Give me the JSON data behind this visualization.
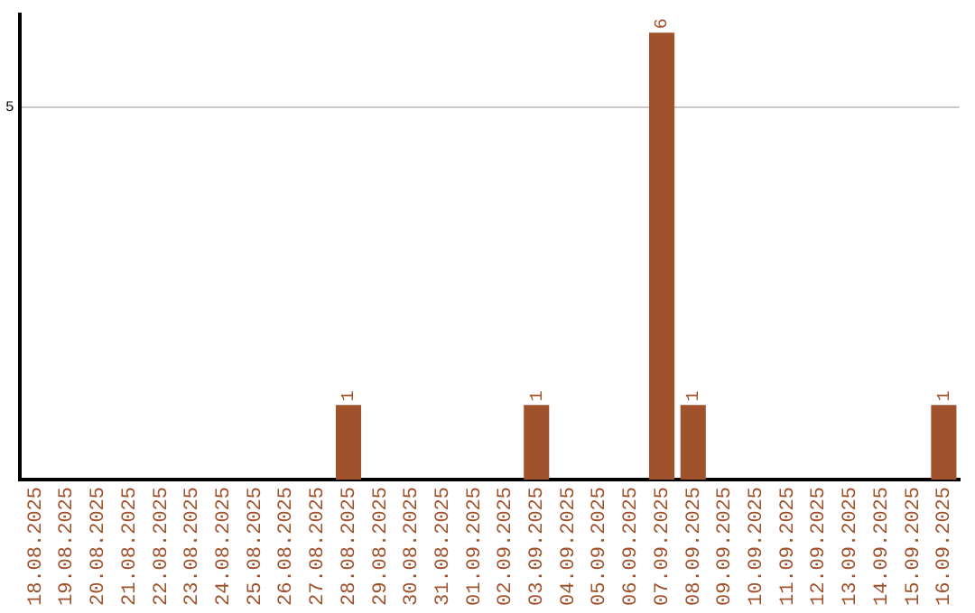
{
  "chart_data": {
    "type": "bar",
    "categories": [
      "18.08.2025",
      "19.08.2025",
      "20.08.2025",
      "21.08.2025",
      "22.08.2025",
      "23.08.2025",
      "24.08.2025",
      "25.08.2025",
      "26.08.2025",
      "27.08.2025",
      "28.08.2025",
      "29.08.2025",
      "30.08.2025",
      "31.08.2025",
      "01.09.2025",
      "02.09.2025",
      "03.09.2025",
      "04.09.2025",
      "05.09.2025",
      "06.09.2025",
      "07.09.2025",
      "08.09.2025",
      "09.09.2025",
      "10.09.2025",
      "11.09.2025",
      "12.09.2025",
      "13.09.2025",
      "14.09.2025",
      "15.09.2025",
      "16.09.2025"
    ],
    "values": [
      0,
      0,
      0,
      0,
      0,
      0,
      0,
      0,
      0,
      0,
      1,
      0,
      0,
      0,
      0,
      0,
      1,
      0,
      0,
      0,
      6,
      1,
      0,
      0,
      0,
      0,
      0,
      0,
      0,
      1
    ],
    "value_labels": [
      null,
      null,
      null,
      null,
      null,
      null,
      null,
      null,
      null,
      null,
      "1",
      null,
      null,
      null,
      null,
      null,
      "1",
      null,
      null,
      null,
      "6",
      "1",
      null,
      null,
      null,
      null,
      null,
      null,
      null,
      "1"
    ],
    "color": "#a0522d",
    "ylim": [
      0,
      6.25
    ],
    "yticks": [
      5
    ],
    "grid": "y",
    "legend": false
  }
}
